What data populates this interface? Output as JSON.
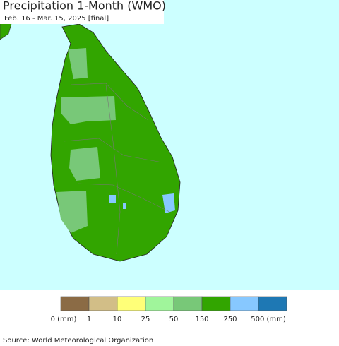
{
  "header": {
    "title": "Precipitation 1-Month (WMO)",
    "subtitle": "Feb. 16 - Mar. 15, 2025 [final]"
  },
  "legend": {
    "labels": [
      "0 (mm)",
      "1",
      "10",
      "25",
      "50",
      "150",
      "250",
      "500 (mm)"
    ],
    "colors": [
      "#8b6b45",
      "#d2be87",
      "#ffff78",
      "#a0f59b",
      "#78c878",
      "#32a500",
      "#87c8ff",
      "#1e78b4"
    ]
  },
  "footer": {
    "source": "Source: World Meteorological Organization"
  }
}
